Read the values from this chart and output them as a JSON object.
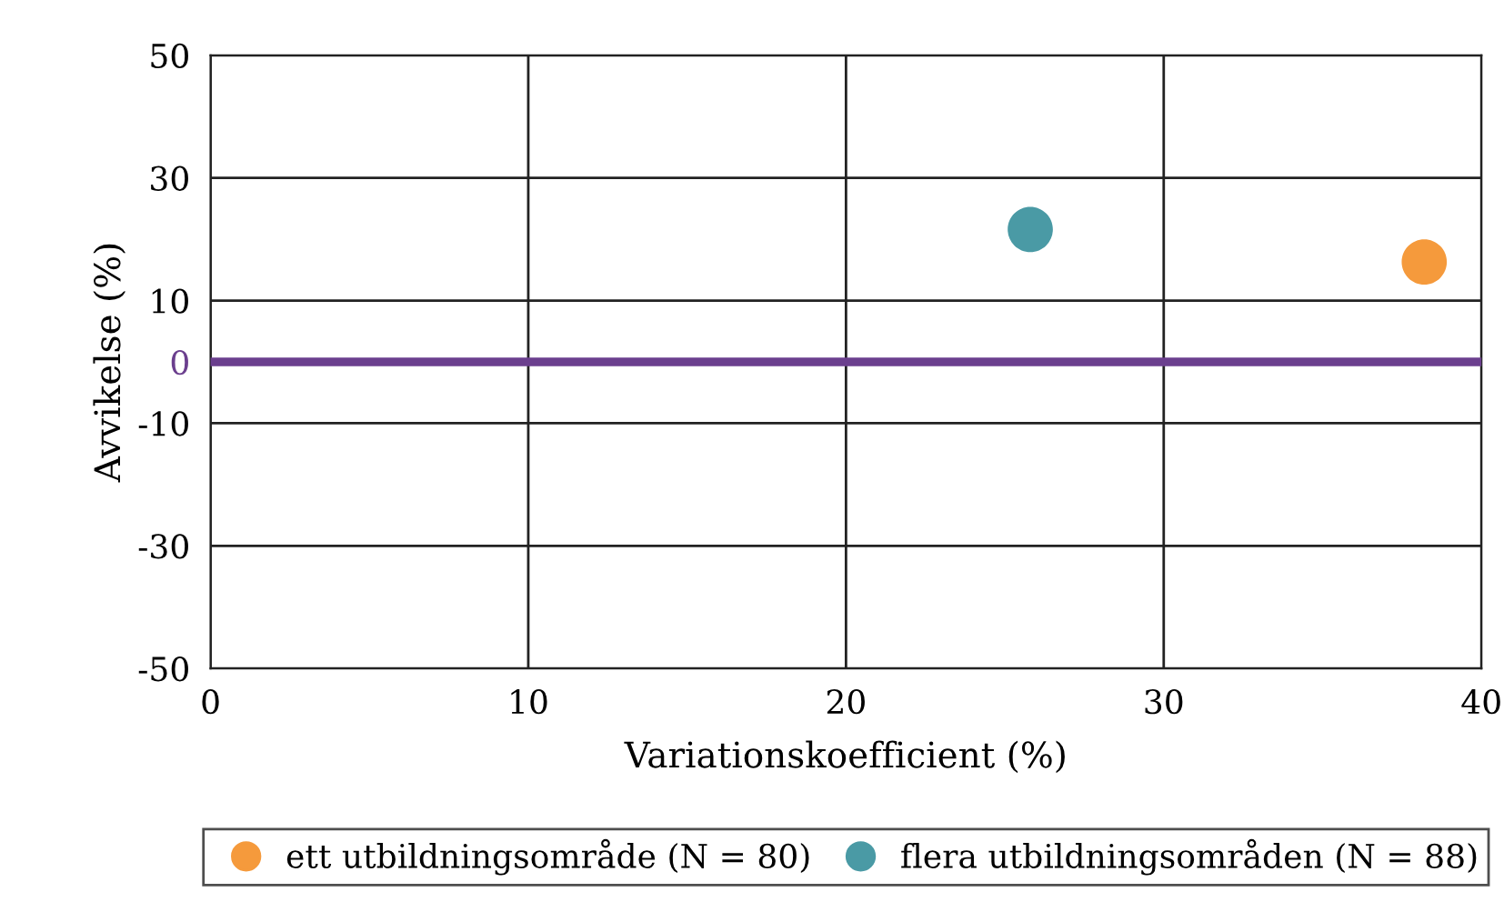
{
  "chart_data": {
    "type": "scatter",
    "xlabel": "Variationskoefficient (%)",
    "ylabel": "Avvikelse (%)",
    "series": [
      {
        "name": "ett utbildningsområde (N = 80)",
        "color": "#f59a3c",
        "x": [
          38.2
        ],
        "values": [
          16.3
        ]
      },
      {
        "name": "flera utbildningsområden (N = 88)",
        "color": "#4a9aa5",
        "x": [
          25.8
        ],
        "values": [
          21.6
        ]
      }
    ],
    "xlim": [
      0,
      40
    ],
    "xticks": [
      0,
      10,
      20,
      30,
      40
    ],
    "ylim": [
      -50,
      50
    ],
    "yticks": [
      -50,
      -30,
      -10,
      0,
      10,
      30,
      50
    ],
    "ref_lines": [
      {
        "axis": "y",
        "value": 0,
        "color": "#6b3f8e"
      }
    ],
    "grid": true,
    "legend": "bottom",
    "marker": "circle"
  }
}
